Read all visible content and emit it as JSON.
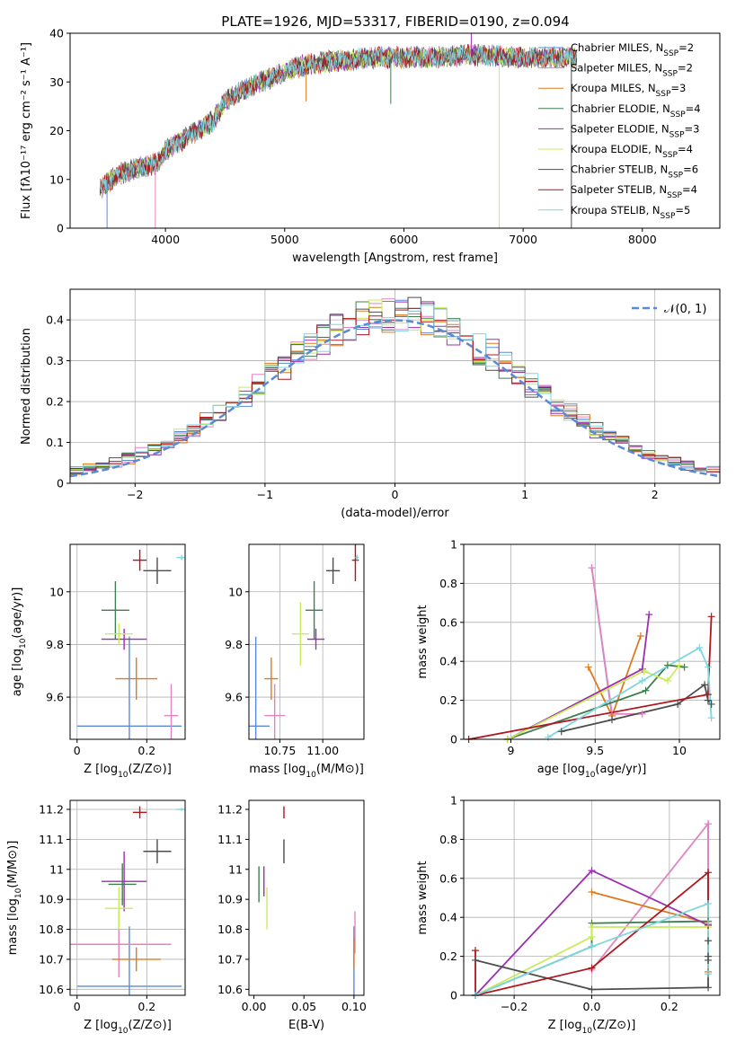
{
  "figure": {
    "title": "PLATE=1926, MJD=53317, FIBERID=0190, z=0.094"
  },
  "colors": {
    "Chabrier MILES": "#5a8ad6",
    "Salpeter MILES": "#e284c0",
    "Kroupa MILES": "#dd7a1e",
    "Chabrier ELODIE": "#3f7f4f",
    "Salpeter ELODIE": "#9b2fb0",
    "Kroupa ELODIE": "#c8ec5a",
    "Chabrier STELIB": "#4d4d4d",
    "Salpeter STELIB": "#b0161c",
    "Kroupa STELIB": "#7fd6df"
  },
  "chart_data": [
    {
      "id": "spectrum",
      "type": "line",
      "xlabel": "wavelength [Angstrom, rest frame]",
      "ylabel": "Flux [fλ10⁻¹⁷ erg cm⁻² s⁻¹ A⁻¹]",
      "xlim": [
        3200,
        8650
      ],
      "ylim": [
        0,
        40
      ],
      "xticks": [
        4000,
        5000,
        6000,
        7000,
        8000
      ],
      "yticks": [
        0,
        10,
        20,
        30,
        40
      ],
      "grid": false,
      "legend": "upper-right",
      "series": [
        {
          "name": "Chabrier MILES, N_SSP=2",
          "label_main": "Chabrier MILES, N",
          "label_sub": "SSP",
          "label_tail": "=2"
        },
        {
          "name": "Salpeter MILES, N_SSP=2",
          "label_main": "Salpeter MILES, N",
          "label_sub": "SSP",
          "label_tail": "=2"
        },
        {
          "name": "Kroupa MILES, N_SSP=3",
          "label_main": "Kroupa MILES, N",
          "label_sub": "SSP",
          "label_tail": "=3"
        },
        {
          "name": "Chabrier ELODIE, N_SSP=4",
          "label_main": "Chabrier ELODIE, N",
          "label_sub": "SSP",
          "label_tail": "=4"
        },
        {
          "name": "Salpeter ELODIE, N_SSP=3",
          "label_main": "Salpeter ELODIE, N",
          "label_sub": "SSP",
          "label_tail": "=3"
        },
        {
          "name": "Kroupa ELODIE, N_SSP=4",
          "label_main": "Kroupa ELODIE, N",
          "label_sub": "SSP",
          "label_tail": "=4"
        },
        {
          "name": "Chabrier STELIB, N_SSP=6",
          "label_main": "Chabrier STELIB, N",
          "label_sub": "SSP",
          "label_tail": "=6"
        },
        {
          "name": "Salpeter STELIB, N_SSP=4",
          "label_main": "Salpeter STELIB, N",
          "label_sub": "SSP",
          "label_tail": "=4"
        },
        {
          "name": "Kroupa STELIB, N_SSP=5",
          "label_main": "Kroupa STELIB, N",
          "label_sub": "SSP",
          "label_tail": "=5"
        }
      ],
      "continuum": {
        "x": [
          3450,
          3600,
          3800,
          3950,
          4000,
          4200,
          4400,
          4500,
          4700,
          4900,
          5100,
          5300,
          5500,
          5700,
          5900,
          6100,
          6300,
          6500,
          6700,
          6900,
          7100,
          7300,
          7450
        ],
        "y": [
          8,
          11,
          12.5,
          13.5,
          16,
          19,
          22,
          26,
          29,
          31,
          33,
          34,
          34.5,
          35,
          35,
          35,
          35,
          35.5,
          35.5,
          35,
          35,
          35,
          35
        ]
      },
      "spikes": [
        {
          "x": 3510,
          "y": 0
        },
        {
          "x": 3915,
          "y": 0
        },
        {
          "x": 5180,
          "y": 26
        },
        {
          "x": 5890,
          "y": 25.5
        },
        {
          "x": 6565,
          "y": 41
        },
        {
          "x": 6800,
          "y": 0
        },
        {
          "x": 7405,
          "y": 0
        }
      ]
    },
    {
      "id": "residuals",
      "type": "step",
      "xlabel": "(data-model)/error",
      "ylabel": "Normed distribution",
      "xlim": [
        -2.5,
        2.5
      ],
      "ylim": [
        0,
        0.475
      ],
      "xticks": [
        -2,
        -1,
        0,
        1,
        2
      ],
      "yticks": [
        0.0,
        0.1,
        0.2,
        0.3,
        0.4
      ],
      "grid": true,
      "legend": "upper-right",
      "reference": {
        "name": "N(0,1)",
        "label": "𝒩(0, 1)",
        "mean": 0,
        "sigma": 1
      },
      "bin_width": 0.1,
      "noise_seed": 7
    },
    {
      "id": "age_vs_Z",
      "type": "errorbar",
      "xlabel_main": "Z [log",
      "xlabel_sub": "10",
      "xlabel_tail": "(Z/Z⊙)]",
      "ylabel_main": "age  [log",
      "ylabel_sub": "10",
      "ylabel_tail": "(age/yr)]",
      "xlim": [
        -0.02,
        0.31
      ],
      "ylim": [
        9.44,
        10.18
      ],
      "xticks": [
        0.0,
        0.2
      ],
      "yticks": [
        9.6,
        9.8,
        10.0
      ],
      "grid": true,
      "points": [
        {
          "name": "Chabrier MILES",
          "x": 0.15,
          "xerr": 0.15,
          "y": 9.49,
          "yerr": 0.34
        },
        {
          "name": "Salpeter MILES",
          "x": 0.27,
          "xerr": 0.02,
          "y": 9.53,
          "yerr": 0.12
        },
        {
          "name": "Kroupa MILES",
          "x": 0.17,
          "xerr": 0.06,
          "y": 9.67,
          "yerr": 0.08
        },
        {
          "name": "Chabrier ELODIE",
          "x": 0.11,
          "xerr": 0.04,
          "y": 9.93,
          "yerr": 0.11
        },
        {
          "name": "Salpeter ELODIE",
          "x": 0.135,
          "xerr": 0.065,
          "y": 9.82,
          "yerr": 0.04
        },
        {
          "name": "Kroupa ELODIE",
          "x": 0.12,
          "xerr": 0.04,
          "y": 9.84,
          "yerr": 0.04
        },
        {
          "name": "Chabrier STELIB",
          "x": 0.23,
          "xerr": 0.04,
          "y": 10.08,
          "yerr": 0.05
        },
        {
          "name": "Salpeter STELIB",
          "x": 0.18,
          "xerr": 0.02,
          "y": 10.12,
          "yerr": 0.04
        },
        {
          "name": "Kroupa STELIB",
          "x": 0.3,
          "xerr": 0.015,
          "y": 10.13,
          "yerr": 0.01
        }
      ]
    },
    {
      "id": "age_vs_mass",
      "type": "errorbar",
      "xlabel_main": "mass [log",
      "xlabel_sub": "10",
      "xlabel_tail": "(M/M⊙)]",
      "ylabel": "",
      "xlim": [
        10.57,
        11.24
      ],
      "ylim": [
        9.44,
        10.18
      ],
      "xticks": [
        10.75,
        11.0
      ],
      "xtick_labels": [
        "10.75",
        "11.00"
      ],
      "yticks": [
        9.6,
        9.8,
        10.0
      ],
      "grid": true,
      "points": [
        {
          "name": "Chabrier MILES",
          "x": 10.61,
          "xerr": 0.08,
          "y": 9.49,
          "yerr": 0.34
        },
        {
          "name": "Salpeter MILES",
          "x": 10.72,
          "xerr": 0.06,
          "y": 9.53,
          "yerr": 0.12
        },
        {
          "name": "Kroupa MILES",
          "x": 10.7,
          "xerr": 0.04,
          "y": 9.67,
          "yerr": 0.08
        },
        {
          "name": "Chabrier ELODIE",
          "x": 10.95,
          "xerr": 0.05,
          "y": 9.93,
          "yerr": 0.11
        },
        {
          "name": "Salpeter ELODIE",
          "x": 10.96,
          "xerr": 0.05,
          "y": 9.82,
          "yerr": 0.04
        },
        {
          "name": "Kroupa ELODIE",
          "x": 10.87,
          "xerr": 0.05,
          "y": 9.84,
          "yerr": 0.12
        },
        {
          "name": "Chabrier STELIB",
          "x": 11.06,
          "xerr": 0.04,
          "y": 10.08,
          "yerr": 0.05
        },
        {
          "name": "Salpeter STELIB",
          "x": 11.19,
          "xerr": 0.02,
          "y": 10.12,
          "yerr": 0.08
        },
        {
          "name": "Kroupa STELIB",
          "x": 11.2,
          "xerr": 0.01,
          "y": 10.13,
          "yerr": 0.01
        }
      ]
    },
    {
      "id": "weight_vs_age",
      "type": "line",
      "xlabel_main": "age  [log",
      "xlabel_sub": "10",
      "xlabel_tail": "(age/yr)]",
      "ylabel": "mass weight",
      "xlim": [
        8.72,
        10.24
      ],
      "ylim": [
        0,
        1
      ],
      "xticks": [
        9.0,
        9.5,
        10.0
      ],
      "yticks": [
        0.0,
        0.2,
        0.4,
        0.6,
        0.8,
        1.0
      ],
      "grid": true,
      "series": [
        {
          "name": "Chabrier MILES",
          "x": [
            9.6,
            9.48
          ],
          "y": [
            0.12,
            0.88
          ]
        },
        {
          "name": "Salpeter MILES",
          "x": [
            9.48,
            9.6,
            9.78
          ],
          "y": [
            0.88,
            0.13,
            0.13
          ]
        },
        {
          "name": "Kroupa MILES",
          "x": [
            9.46,
            9.6,
            9.77
          ],
          "y": [
            0.37,
            0.12,
            0.53
          ]
        },
        {
          "name": "Chabrier ELODIE",
          "x": [
            8.98,
            9.8,
            9.93,
            10.03
          ],
          "y": [
            0.0,
            0.25,
            0.38,
            0.37
          ]
        },
        {
          "name": "Salpeter ELODIE",
          "x": [
            8.98,
            9.78,
            9.82
          ],
          "y": [
            0.0,
            0.36,
            0.64
          ]
        },
        {
          "name": "Kroupa ELODIE",
          "x": [
            8.98,
            9.79,
            9.93,
            10.0
          ],
          "y": [
            0.0,
            0.35,
            0.3,
            0.38
          ]
        },
        {
          "name": "Chabrier STELIB",
          "x": [
            9.3,
            9.6,
            9.99,
            10.15,
            10.17,
            10.19
          ],
          "y": [
            0.04,
            0.1,
            0.18,
            0.28,
            0.2,
            0.18
          ]
        },
        {
          "name": "Salpeter STELIB",
          "x": [
            8.75,
            10.17,
            10.19
          ],
          "y": [
            0.0,
            0.23,
            0.63
          ]
        },
        {
          "name": "Kroupa STELIB",
          "x": [
            9.22,
            9.78,
            10.12,
            10.17,
            10.19
          ],
          "y": [
            0.01,
            0.3,
            0.47,
            0.37,
            0.11
          ]
        }
      ]
    },
    {
      "id": "mass_vs_Z",
      "type": "errorbar",
      "xlabel_main": "Z [log",
      "xlabel_sub": "10",
      "xlabel_tail": "(Z/Z⊙)]",
      "ylabel_main": "mass [log",
      "ylabel_sub": "10",
      "ylabel_tail": "(M/M⊙)]",
      "xlim": [
        -0.02,
        0.31
      ],
      "ylim": [
        10.58,
        11.23
      ],
      "xticks": [
        0.0,
        0.2
      ],
      "yticks": [
        10.6,
        10.7,
        10.8,
        10.9,
        11.0,
        11.1,
        11.2
      ],
      "grid": true,
      "points": [
        {
          "name": "Chabrier MILES",
          "x": 0.15,
          "xerr": 0.15,
          "y": 10.61,
          "yerr": 0.2
        },
        {
          "name": "Salpeter MILES",
          "x": 0.12,
          "xerr": 0.15,
          "y": 10.75,
          "yerr": 0.11
        },
        {
          "name": "Kroupa MILES",
          "x": 0.17,
          "xerr": 0.07,
          "y": 10.7,
          "yerr": 0.04
        },
        {
          "name": "Chabrier ELODIE",
          "x": 0.13,
          "xerr": 0.04,
          "y": 10.95,
          "yerr": 0.07
        },
        {
          "name": "Salpeter ELODIE",
          "x": 0.135,
          "xerr": 0.065,
          "y": 10.96,
          "yerr": 0.1
        },
        {
          "name": "Kroupa ELODIE",
          "x": 0.12,
          "xerr": 0.04,
          "y": 10.87,
          "yerr": 0.07
        },
        {
          "name": "Chabrier STELIB",
          "x": 0.23,
          "xerr": 0.04,
          "y": 11.06,
          "yerr": 0.04
        },
        {
          "name": "Salpeter STELIB",
          "x": 0.18,
          "xerr": 0.02,
          "y": 11.19,
          "yerr": 0.02
        },
        {
          "name": "Kroupa STELIB",
          "x": 0.3,
          "xerr": 0.015,
          "y": 11.2,
          "yerr": 0.005
        }
      ]
    },
    {
      "id": "mass_vs_ebv",
      "type": "errorbar",
      "xlabel": "E(B-V)",
      "ylabel": "",
      "xlim": [
        -0.005,
        0.11
      ],
      "ylim": [
        10.58,
        11.23
      ],
      "xticks": [
        0.0,
        0.05,
        0.1
      ],
      "xtick_labels": [
        "0.00",
        "0.05",
        "0.10"
      ],
      "yticks": [
        10.6,
        10.7,
        10.8,
        10.9,
        11.0,
        11.1,
        11.2
      ],
      "grid": false,
      "points": [
        {
          "name": "Chabrier MILES",
          "x": 0.1,
          "xerr": 0.0,
          "y": 10.61,
          "yerr": 0.2
        },
        {
          "name": "Salpeter MILES",
          "x": 0.101,
          "xerr": 0.0,
          "y": 10.79,
          "yerr": 0.07
        },
        {
          "name": "Kroupa MILES",
          "x": 0.1,
          "xerr": 0.0,
          "y": 10.72,
          "yerr": 0.05
        },
        {
          "name": "Chabrier ELODIE",
          "x": 0.005,
          "xerr": 0.0,
          "y": 10.95,
          "yerr": 0.06
        },
        {
          "name": "Salpeter ELODIE",
          "x": 0.01,
          "xerr": 0.0,
          "y": 10.96,
          "yerr": 0.05
        },
        {
          "name": "Kroupa ELODIE",
          "x": 0.013,
          "xerr": 0.0,
          "y": 10.87,
          "yerr": 0.07
        },
        {
          "name": "Chabrier STELIB",
          "x": 0.03,
          "xerr": 0.0,
          "y": 11.06,
          "yerr": 0.04
        },
        {
          "name": "Salpeter STELIB",
          "x": 0.03,
          "xerr": 0.0,
          "y": 11.19,
          "yerr": 0.02
        },
        {
          "name": "Kroupa STELIB",
          "x": 0.0,
          "xerr": 0.0,
          "y": 11.2,
          "yerr": 0.0
        }
      ]
    },
    {
      "id": "weight_vs_Z",
      "type": "line",
      "xlabel_main": "Z [log",
      "xlabel_sub": "10",
      "xlabel_tail": "(Z/Z⊙)]",
      "ylabel": "mass weight",
      "xlim": [
        -0.33,
        0.33
      ],
      "ylim": [
        0,
        1
      ],
      "xticks": [
        -0.2,
        0.0,
        0.2
      ],
      "xtick_labels": [
        "−0.2",
        "0.0",
        "0.2"
      ],
      "yticks": [
        0.0,
        0.2,
        0.4,
        0.6,
        0.8,
        1.0
      ],
      "grid": true,
      "series": [
        {
          "name": "Chabrier MILES",
          "x": [
            0.3,
            0.3
          ],
          "y": [
            0.12,
            0.88
          ]
        },
        {
          "name": "Salpeter MILES",
          "x": [
            0.0,
            0.3,
            0.3
          ],
          "y": [
            0.13,
            0.88,
            0.37
          ]
        },
        {
          "name": "Kroupa MILES",
          "x": [
            0.0,
            0.3,
            0.3
          ],
          "y": [
            0.53,
            0.37,
            0.12
          ]
        },
        {
          "name": "Chabrier ELODIE",
          "x": [
            -0.3,
            0.0,
            0.0,
            0.3
          ],
          "y": [
            0.0,
            0.25,
            0.37,
            0.38
          ]
        },
        {
          "name": "Salpeter ELODIE",
          "x": [
            -0.3,
            0.0,
            0.3
          ],
          "y": [
            0.0,
            0.64,
            0.36
          ]
        },
        {
          "name": "Kroupa ELODIE",
          "x": [
            -0.3,
            0.0,
            0.0,
            0.3
          ],
          "y": [
            0.0,
            0.3,
            0.35,
            0.35
          ]
        },
        {
          "name": "Chabrier STELIB",
          "x": [
            -0.3,
            0.0,
            0.3,
            0.3,
            0.3,
            0.3
          ],
          "y": [
            0.18,
            0.03,
            0.04,
            0.18,
            0.2,
            0.28
          ]
        },
        {
          "name": "Salpeter STELIB",
          "x": [
            -0.3,
            -0.3,
            0.0,
            0.3,
            0.3
          ],
          "y": [
            0.23,
            0.0,
            0.14,
            0.63,
            0.36
          ]
        },
        {
          "name": "Kroupa STELIB",
          "x": [
            -0.3,
            0.0,
            0.3,
            0.3,
            0.3
          ],
          "y": [
            0.0,
            0.25,
            0.47,
            0.37,
            0.11
          ]
        }
      ]
    }
  ]
}
